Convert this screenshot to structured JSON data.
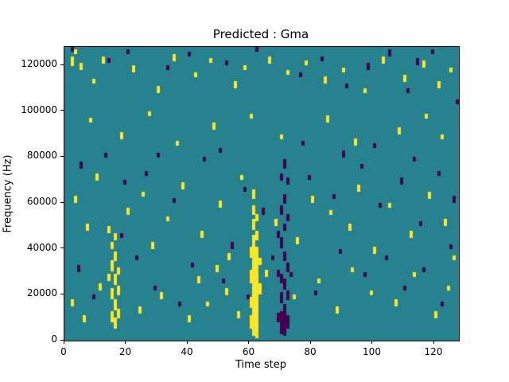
{
  "title": "Predicted : Gma",
  "chart_data": {
    "type": "heatmap",
    "title": "Predicted : Gma",
    "xlabel": "Time step",
    "ylabel": "Frequency (Hz)",
    "x_ticks": [
      0,
      20,
      40,
      60,
      80,
      100,
      120
    ],
    "y_ticks": [
      0,
      20000,
      40000,
      60000,
      80000,
      100000,
      120000
    ],
    "x_range": [
      0,
      128
    ],
    "y_range": [
      0,
      128000
    ],
    "grid": [
      128,
      128
    ],
    "legend": "none",
    "colors": {
      "background": "#26828e",
      "high": "#fde725",
      "low": "#440154"
    },
    "cell_unit_hz": 1000,
    "high_cells": [
      [
        60,
        5,
        10
      ],
      [
        60,
        14,
        18
      ],
      [
        60,
        25,
        30
      ],
      [
        60,
        36,
        40
      ],
      [
        61,
        2,
        45
      ],
      [
        61,
        48,
        52
      ],
      [
        61,
        55,
        58
      ],
      [
        61,
        62,
        65
      ],
      [
        62,
        1,
        40
      ],
      [
        62,
        44,
        47
      ],
      [
        62,
        52,
        54
      ],
      [
        63,
        20,
        24
      ],
      [
        63,
        33,
        35
      ],
      [
        14,
        26,
        28
      ],
      [
        14,
        47,
        49
      ],
      [
        15,
        8,
        12
      ],
      [
        15,
        18,
        22
      ],
      [
        15,
        30,
        34
      ],
      [
        15,
        40,
        42
      ],
      [
        16,
        5,
        9
      ],
      [
        16,
        13,
        17
      ],
      [
        16,
        24,
        28
      ],
      [
        16,
        35,
        38
      ],
      [
        16,
        44,
        46
      ],
      [
        17,
        10,
        13
      ],
      [
        17,
        20,
        23
      ],
      [
        17,
        29,
        31
      ],
      [
        2,
        120,
        123
      ],
      [
        3,
        125,
        126
      ],
      [
        5,
        118,
        120
      ],
      [
        9,
        112,
        113
      ],
      [
        12,
        121,
        123
      ],
      [
        22,
        117,
        119
      ],
      [
        30,
        108,
        110
      ],
      [
        35,
        122,
        124
      ],
      [
        42,
        115,
        116
      ],
      [
        47,
        121,
        122
      ],
      [
        55,
        110,
        112
      ],
      [
        58,
        118,
        119
      ],
      [
        66,
        121,
        123
      ],
      [
        72,
        116,
        117
      ],
      [
        78,
        120,
        121
      ],
      [
        84,
        112,
        114
      ],
      [
        90,
        117,
        118
      ],
      [
        97,
        108,
        109
      ],
      [
        103,
        121,
        123
      ],
      [
        110,
        113,
        115
      ],
      [
        116,
        119,
        121
      ],
      [
        121,
        110,
        112
      ],
      [
        125,
        117,
        118
      ],
      [
        3,
        60,
        62
      ],
      [
        7,
        48,
        50
      ],
      [
        10,
        70,
        72
      ],
      [
        20,
        55,
        57
      ],
      [
        25,
        63,
        64
      ],
      [
        28,
        40,
        42
      ],
      [
        33,
        52,
        53
      ],
      [
        38,
        66,
        68
      ],
      [
        44,
        45,
        47
      ],
      [
        50,
        58,
        60
      ],
      [
        53,
        35,
        37
      ],
      [
        57,
        70,
        71
      ],
      [
        68,
        50,
        52
      ],
      [
        75,
        42,
        44
      ],
      [
        80,
        60,
        62
      ],
      [
        86,
        55,
        56
      ],
      [
        92,
        48,
        50
      ],
      [
        95,
        65,
        67
      ],
      [
        100,
        38,
        40
      ],
      [
        105,
        58,
        59
      ],
      [
        112,
        45,
        47
      ],
      [
        118,
        62,
        64
      ],
      [
        123,
        50,
        52
      ],
      [
        126,
        35,
        36
      ],
      [
        2,
        15,
        17
      ],
      [
        6,
        8,
        10
      ],
      [
        11,
        22,
        24
      ],
      [
        24,
        12,
        14
      ],
      [
        31,
        18,
        20
      ],
      [
        40,
        8,
        10
      ],
      [
        43,
        25,
        27
      ],
      [
        46,
        15,
        16
      ],
      [
        49,
        30,
        32
      ],
      [
        52,
        20,
        22
      ],
      [
        56,
        10,
        12
      ],
      [
        65,
        28,
        30
      ],
      [
        74,
        18,
        19
      ],
      [
        82,
        25,
        26
      ],
      [
        88,
        12,
        14
      ],
      [
        93,
        30,
        31
      ],
      [
        99,
        20,
        21
      ],
      [
        107,
        15,
        17
      ],
      [
        113,
        28,
        29
      ],
      [
        120,
        10,
        12
      ],
      [
        124,
        22,
        23
      ],
      [
        8,
        95,
        96
      ],
      [
        18,
        88,
        90
      ],
      [
        27,
        98,
        99
      ],
      [
        36,
        85,
        86
      ],
      [
        48,
        92,
        94
      ],
      [
        60,
        97,
        98
      ],
      [
        70,
        88,
        89
      ],
      [
        85,
        95,
        97
      ],
      [
        94,
        85,
        87
      ],
      [
        108,
        90,
        92
      ],
      [
        117,
        97,
        98
      ],
      [
        122,
        88,
        89
      ]
    ],
    "low_cells": [
      [
        69,
        8,
        11
      ],
      [
        69,
        28,
        30
      ],
      [
        69,
        45,
        47
      ],
      [
        70,
        3,
        12
      ],
      [
        70,
        16,
        20
      ],
      [
        70,
        25,
        28
      ],
      [
        70,
        40,
        44
      ],
      [
        70,
        55,
        58
      ],
      [
        70,
        70,
        72
      ],
      [
        71,
        2,
        15
      ],
      [
        71,
        22,
        26
      ],
      [
        71,
        35,
        38
      ],
      [
        71,
        48,
        50
      ],
      [
        71,
        60,
        63
      ],
      [
        71,
        75,
        78
      ],
      [
        72,
        5,
        10
      ],
      [
        72,
        18,
        21
      ],
      [
        72,
        30,
        33
      ],
      [
        72,
        52,
        54
      ],
      [
        72,
        68,
        70
      ],
      [
        2,
        126,
        127
      ],
      [
        14,
        121,
        122
      ],
      [
        20,
        125,
        126
      ],
      [
        33,
        118,
        119
      ],
      [
        40,
        124,
        125
      ],
      [
        52,
        120,
        121
      ],
      [
        62,
        126,
        127
      ],
      [
        76,
        115,
        116
      ],
      [
        83,
        122,
        123
      ],
      [
        91,
        110,
        111
      ],
      [
        98,
        118,
        120
      ],
      [
        105,
        124,
        126
      ],
      [
        111,
        108,
        109
      ],
      [
        114,
        120,
        122
      ],
      [
        119,
        125,
        126
      ],
      [
        127,
        103,
        104
      ],
      [
        5,
        75,
        77
      ],
      [
        13,
        80,
        81
      ],
      [
        19,
        68,
        69
      ],
      [
        26,
        72,
        73
      ],
      [
        35,
        60,
        61
      ],
      [
        45,
        78,
        79
      ],
      [
        58,
        65,
        66
      ],
      [
        64,
        55,
        57
      ],
      [
        79,
        70,
        71
      ],
      [
        87,
        62,
        63
      ],
      [
        96,
        75,
        76
      ],
      [
        102,
        58,
        59
      ],
      [
        109,
        68,
        70
      ],
      [
        115,
        50,
        51
      ],
      [
        121,
        72,
        73
      ],
      [
        126,
        60,
        62
      ],
      [
        4,
        30,
        32
      ],
      [
        9,
        18,
        19
      ],
      [
        18,
        45,
        46
      ],
      [
        23,
        35,
        36
      ],
      [
        29,
        22,
        23
      ],
      [
        37,
        15,
        16
      ],
      [
        41,
        32,
        33
      ],
      [
        51,
        25,
        26
      ],
      [
        54,
        40,
        42
      ],
      [
        59,
        18,
        19
      ],
      [
        67,
        35,
        36
      ],
      [
        73,
        28,
        29
      ],
      [
        81,
        20,
        21
      ],
      [
        89,
        38,
        39
      ],
      [
        97,
        28,
        29
      ],
      [
        104,
        35,
        36
      ],
      [
        110,
        22,
        23
      ],
      [
        116,
        30,
        31
      ],
      [
        122,
        15,
        16
      ],
      [
        125,
        40,
        41
      ],
      [
        30,
        80,
        81
      ],
      [
        50,
        82,
        83
      ],
      [
        77,
        85,
        86
      ],
      [
        90,
        80,
        82
      ],
      [
        100,
        84,
        85
      ],
      [
        113,
        78,
        79
      ]
    ]
  }
}
